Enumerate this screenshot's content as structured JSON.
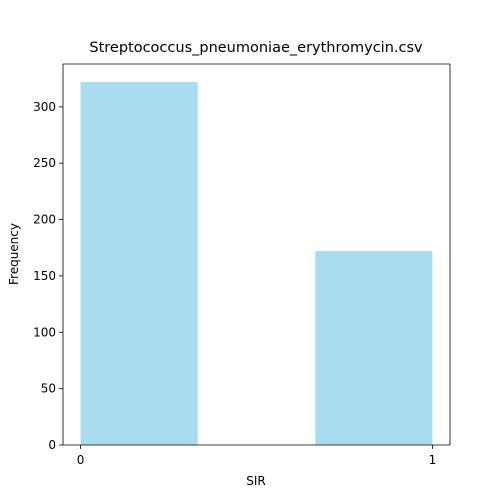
{
  "chart_data": {
    "type": "bar",
    "title": "Streptococcus_pneumoniae_erythromycin.csv",
    "xlabel": "SIR",
    "ylabel": "Frequency",
    "bins": [
      {
        "start": 0,
        "end": 0.333,
        "value": 322
      },
      {
        "start": 0.333,
        "end": 0.667,
        "value": 0
      },
      {
        "start": 0.667,
        "end": 1.0,
        "value": 172
      }
    ],
    "xticks": [
      0,
      1
    ],
    "yticks": [
      0,
      50,
      100,
      150,
      200,
      250,
      300
    ],
    "xlim": [
      -0.05,
      1.05
    ],
    "ylim": [
      0,
      338
    ],
    "grid": false,
    "bar_color": "#a8dcee"
  }
}
